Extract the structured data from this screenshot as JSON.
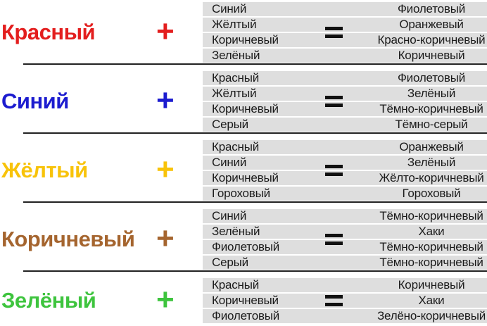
{
  "table": {
    "plus_sign": "+",
    "equals_sign": "=",
    "stripe_color": "#dedede",
    "separator_color": "#222222",
    "groups": [
      {
        "base": "Красный",
        "color_hex": "#e31e1e",
        "rows": [
          {
            "mix": "Синий",
            "result": "Фиолетовый"
          },
          {
            "mix": "Жёлтый",
            "result": "Оранжевый"
          },
          {
            "mix": "Коричневый",
            "result": "Красно-коричневый"
          },
          {
            "mix": "Зелёный",
            "result": "Коричневый"
          }
        ]
      },
      {
        "base": "Синий",
        "color_hex": "#1c1ccf",
        "rows": [
          {
            "mix": "Красный",
            "result": "Фиолетовый"
          },
          {
            "mix": "Жёлтый",
            "result": "Зелёный"
          },
          {
            "mix": "Коричневый",
            "result": "Тёмно-коричневый"
          },
          {
            "mix": "Серый",
            "result": "Тёмно-серый"
          }
        ]
      },
      {
        "base": "Жёлтый",
        "color_hex": "#f8c30a",
        "rows": [
          {
            "mix": "Красный",
            "result": "Оранжевый"
          },
          {
            "mix": "Синий",
            "result": "Зелёный"
          },
          {
            "mix": "Коричневый",
            "result": "Жёлто-коричневый"
          },
          {
            "mix": "Гороховый",
            "result": "Гороховый"
          }
        ]
      },
      {
        "base": "Коричневый",
        "color_hex": "#a5652f",
        "rows": [
          {
            "mix": "Синий",
            "result": "Тёмно-коричневый"
          },
          {
            "mix": "Зелёный",
            "result": "Хаки"
          },
          {
            "mix": "Фиолетовый",
            "result": "Тёмно-коричневый"
          },
          {
            "mix": "Серый",
            "result": "Тёмно-коричневый"
          }
        ]
      },
      {
        "base": "Зелёный",
        "color_hex": "#3ec43e",
        "rows": [
          {
            "mix": "Красный",
            "result": "Коричневый"
          },
          {
            "mix": "Коричневый",
            "result": "Хаки"
          },
          {
            "mix": "Фиолетовый",
            "result": "Зелёно-коричневый"
          }
        ]
      }
    ]
  }
}
